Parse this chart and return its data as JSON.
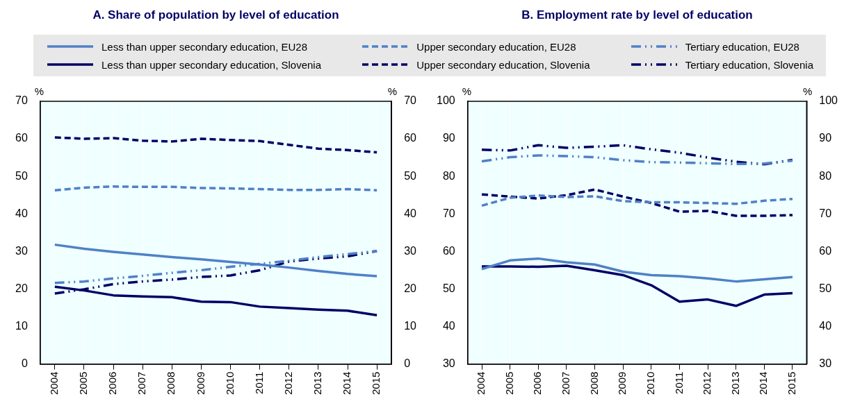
{
  "chart_data": [
    {
      "type": "line",
      "title": "A. Share of population by level of education",
      "ylabel": "%",
      "y2label": "%",
      "categories": [
        "2004",
        "2005",
        "2006",
        "2007",
        "2008",
        "2009",
        "2010",
        "2011",
        "2012",
        "2013",
        "2014",
        "2015"
      ],
      "ylim": [
        0,
        70
      ],
      "yticks": [
        0,
        10,
        20,
        30,
        40,
        50,
        60,
        70
      ],
      "y2lim": [
        0,
        70
      ],
      "y2ticks": [
        0,
        10,
        20,
        30,
        40,
        50,
        60,
        70
      ],
      "grid": "x",
      "legend": "top",
      "marker": "none",
      "series": [
        {
          "name": "Less than upper secondary education, EU28",
          "color": "#4f81c7",
          "line_style": "solid",
          "values": [
            31.8,
            30.7,
            29.9,
            29.2,
            28.5,
            27.9,
            27.2,
            26.5,
            25.7,
            24.8,
            24.0,
            23.4
          ]
        },
        {
          "name": "Less than upper secondary education, Slovenia",
          "color": "#000066",
          "line_style": "solid",
          "values": [
            20.6,
            19.6,
            18.3,
            18.0,
            17.8,
            16.6,
            16.5,
            15.3,
            14.9,
            14.5,
            14.2,
            13.0
          ]
        },
        {
          "name": "Upper secondary education, EU28",
          "color": "#4f81c7",
          "line_style": "dashed",
          "values": [
            46.3,
            47.0,
            47.3,
            47.2,
            47.2,
            46.9,
            46.8,
            46.6,
            46.4,
            46.4,
            46.6,
            46.3
          ]
        },
        {
          "name": "Upper secondary education, Slovenia",
          "color": "#000066",
          "line_style": "dashed",
          "values": [
            60.4,
            60.0,
            60.2,
            59.5,
            59.3,
            60.0,
            59.7,
            59.4,
            58.4,
            57.4,
            57.0,
            56.4
          ]
        },
        {
          "name": "Tertiary education, EU28",
          "color": "#4f81c7",
          "line_style": "dotted",
          "values": [
            21.6,
            22.0,
            22.8,
            23.5,
            24.3,
            25.0,
            25.9,
            26.7,
            27.5,
            28.5,
            29.3,
            30.1
          ]
        },
        {
          "name": "Tertiary education, Slovenia",
          "color": "#000066",
          "line_style": "dotted",
          "values": [
            18.8,
            19.9,
            21.3,
            22.0,
            22.5,
            23.2,
            23.6,
            25.0,
            27.3,
            28.1,
            28.7,
            30.1
          ]
        }
      ]
    },
    {
      "type": "line",
      "title": "B. Employment rate by level of education",
      "ylabel": "%",
      "y2label": "%",
      "categories": [
        "2004",
        "2005",
        "2006",
        "2007",
        "2008",
        "2009",
        "2010",
        "2011",
        "2012",
        "2013",
        "2014",
        "2015"
      ],
      "ylim": [
        30,
        100
      ],
      "yticks": [
        30,
        40,
        50,
        60,
        70,
        80,
        90,
        100
      ],
      "y2lim": [
        30,
        100
      ],
      "y2ticks": [
        30,
        40,
        50,
        60,
        70,
        80,
        90,
        100
      ],
      "grid": "x",
      "marker": "none",
      "series": [
        {
          "color": "#4f81c7",
          "line_style": "solid",
          "values": [
            55.3,
            57.6,
            58.1,
            57.1,
            56.5,
            54.6,
            53.7,
            53.4,
            52.8,
            52.0,
            52.6,
            53.2
          ]
        },
        {
          "color": "#000066",
          "line_style": "solid",
          "values": [
            56.0,
            56.0,
            55.9,
            56.2,
            55.0,
            53.7,
            51.0,
            46.6,
            47.2,
            45.5,
            48.5,
            48.9
          ]
        },
        {
          "color": "#4f81c7",
          "line_style": "dashed",
          "values": [
            72.2,
            74.3,
            74.9,
            74.5,
            74.7,
            73.4,
            73.1,
            73.1,
            72.9,
            72.7,
            73.5,
            74.0
          ]
        },
        {
          "color": "#000066",
          "line_style": "dashed",
          "values": [
            75.2,
            74.6,
            74.1,
            75.0,
            76.5,
            74.6,
            72.9,
            70.6,
            70.8,
            69.5,
            69.5,
            69.7
          ]
        },
        {
          "color": "#4f81c7",
          "line_style": "dotted",
          "values": [
            84.0,
            85.1,
            85.6,
            85.4,
            85.1,
            84.3,
            83.8,
            83.7,
            83.5,
            83.3,
            83.4,
            84.2
          ]
        },
        {
          "color": "#000066",
          "line_style": "dotted",
          "values": [
            87.1,
            86.9,
            88.3,
            87.6,
            87.9,
            88.3,
            87.2,
            86.3,
            85.0,
            83.9,
            83.2,
            84.4
          ]
        }
      ]
    }
  ]
}
